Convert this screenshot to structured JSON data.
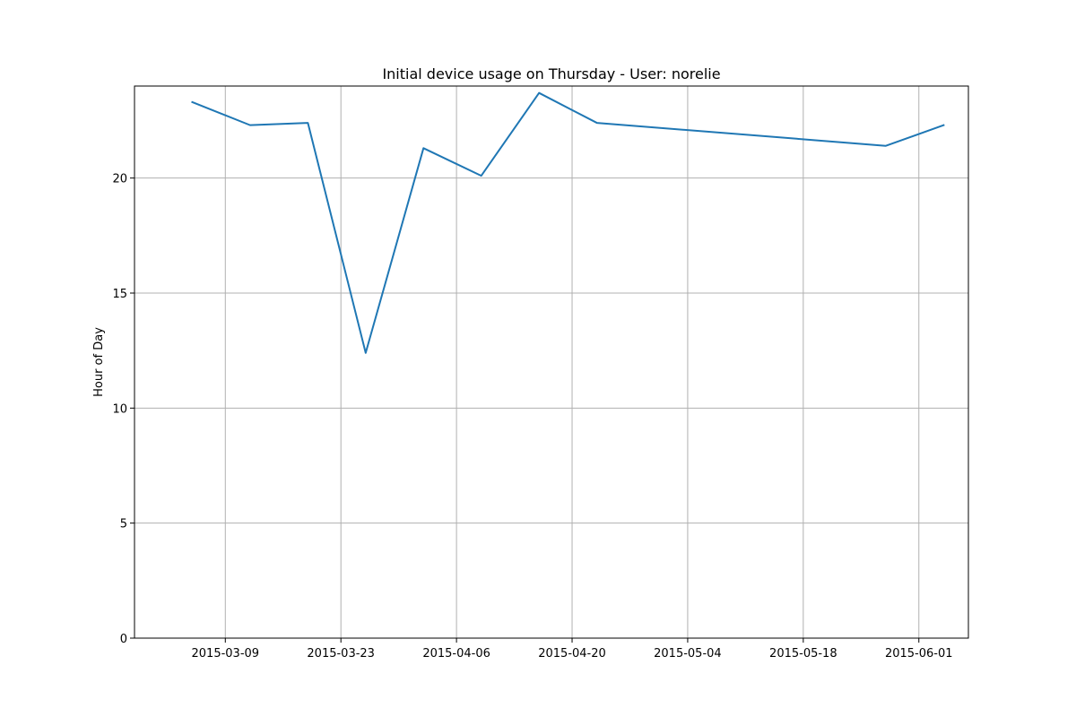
{
  "chart_data": {
    "type": "line",
    "title": "Initial device usage on Thursday - User: norelie",
    "xlabel": "",
    "ylabel": "Hour of Day",
    "xlim": [
      "2015-02-26",
      "2015-06-07"
    ],
    "ylim": [
      0,
      24
    ],
    "x_ticks": [
      "2015-03-09",
      "2015-03-23",
      "2015-04-06",
      "2015-04-20",
      "2015-05-04",
      "2015-05-18",
      "2015-06-01"
    ],
    "y_ticks": [
      0,
      5,
      10,
      15,
      20
    ],
    "grid": true,
    "line_color": "#1f77b4",
    "series": [
      {
        "x": [
          "2015-03-05",
          "2015-03-12",
          "2015-03-19",
          "2015-03-26",
          "2015-04-02",
          "2015-04-09",
          "2015-04-16",
          "2015-04-23",
          "2015-05-28",
          "2015-06-04"
        ],
        "values": [
          23.3,
          22.3,
          22.4,
          12.4,
          21.3,
          20.1,
          23.7,
          22.4,
          21.4,
          22.3
        ]
      }
    ]
  }
}
